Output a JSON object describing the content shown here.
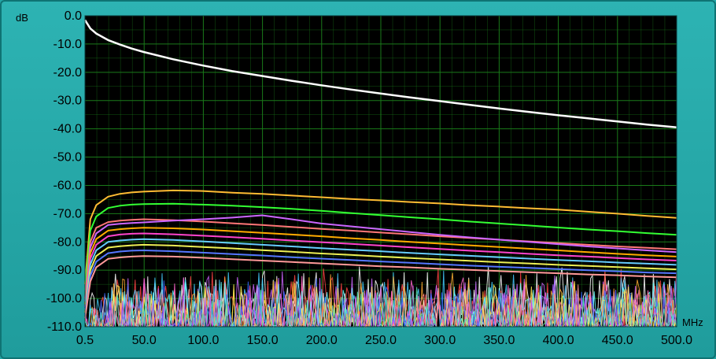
{
  "chart_data": {
    "type": "line",
    "title": "",
    "xlabel": "",
    "ylabel": "",
    "y_unit": "dB",
    "x_unit": "MHz",
    "xlim": [
      0.5,
      500.0
    ],
    "ylim": [
      -110.0,
      0.0
    ],
    "x_ticks": [
      "0.5",
      "50.0",
      "100.0",
      "150.0",
      "200.0",
      "250.0",
      "300.0",
      "350.0",
      "400.0",
      "450.0",
      "500.0"
    ],
    "y_ticks": [
      "0.0",
      "-10.0",
      "-20.0",
      "-30.0",
      "-40.0",
      "-50.0",
      "-60.0",
      "-70.0",
      "-80.0",
      "-90.0",
      "-100.0",
      "-110.0"
    ],
    "grid": true,
    "legend": "none",
    "background_color": "#000000",
    "grid_color": "#1a7a1a",
    "x": [
      0.5,
      5,
      10,
      20,
      30,
      40,
      50,
      75,
      100,
      125,
      150,
      175,
      200,
      225,
      250,
      275,
      300,
      325,
      350,
      375,
      400,
      425,
      450,
      475,
      500
    ],
    "series": [
      {
        "color": "#ffffff",
        "values": [
          -1.5,
          -4.5,
          -6.3,
          -8.6,
          -10.2,
          -11.6,
          -12.8,
          -15.4,
          -17.6,
          -19.6,
          -21.3,
          -23.0,
          -24.6,
          -26.1,
          -27.5,
          -28.9,
          -30.2,
          -31.5,
          -32.8,
          -34.0,
          -35.2,
          -36.3,
          -37.4,
          -38.5,
          -39.5
        ]
      },
      {
        "color": "#ffbb33",
        "values": [
          -95,
          -72,
          -67,
          -64,
          -63,
          -62.5,
          -62.2,
          -61.8,
          -62.0,
          -62.6,
          -63.0,
          -63.6,
          -64.2,
          -64.8,
          -65.3,
          -65.9,
          -66.4,
          -67.0,
          -67.5,
          -68.1,
          -68.6,
          -69.3,
          -70.0,
          -70.8,
          -71.5
        ]
      },
      {
        "color": "#33ff33",
        "values": [
          -97,
          -76,
          -71,
          -68,
          -67.2,
          -66.8,
          -66.6,
          -66.5,
          -66.8,
          -67.2,
          -67.7,
          -68.3,
          -69.0,
          -69.8,
          -70.5,
          -71.3,
          -72.0,
          -72.8,
          -73.5,
          -74.2,
          -74.9,
          -75.6,
          -76.2,
          -76.9,
          -77.5
        ]
      },
      {
        "color": "#ff7777",
        "values": [
          -100,
          -80,
          -75,
          -73,
          -72.5,
          -72.2,
          -72.0,
          -72.3,
          -72.8,
          -73.4,
          -74.0,
          -74.7,
          -75.4,
          -76.0,
          -76.7,
          -77.3,
          -78.0,
          -78.6,
          -79.2,
          -79.8,
          -80.4,
          -81.0,
          -81.6,
          -82.1,
          -82.6
        ]
      },
      {
        "color": "#cc66ff",
        "values": [
          -101,
          -82,
          -77,
          -74,
          -73.6,
          -73.3,
          -73.1,
          -72.5,
          -72.0,
          -71.4,
          -70.6,
          -72.0,
          -73.5,
          -74.5,
          -75.5,
          -76.5,
          -77.5,
          -78.4,
          -79.2,
          -80.0,
          -80.8,
          -81.6,
          -82.3,
          -83.0,
          -83.6
        ]
      },
      {
        "color": "#ffaa00",
        "values": [
          -102,
          -84,
          -79,
          -76,
          -75.5,
          -75.2,
          -75.0,
          -75.2,
          -75.6,
          -76.2,
          -76.8,
          -77.4,
          -78.0,
          -78.7,
          -79.3,
          -80.0,
          -80.6,
          -81.2,
          -81.8,
          -82.4,
          -83.0,
          -83.6,
          -84.2,
          -84.7,
          -85.2
        ]
      },
      {
        "color": "#ff44cc",
        "values": [
          -103,
          -86,
          -81,
          -78,
          -77.4,
          -77.1,
          -77.0,
          -77.3,
          -77.8,
          -78.3,
          -78.9,
          -79.5,
          -80.1,
          -80.7,
          -81.3,
          -81.9,
          -82.5,
          -83.1,
          -83.6,
          -84.2,
          -84.7,
          -85.2,
          -85.7,
          -86.2,
          -86.6
        ]
      },
      {
        "color": "#66ccff",
        "values": [
          -104,
          -88,
          -83,
          -80,
          -79.5,
          -79.2,
          -79.0,
          -79.3,
          -79.8,
          -80.4,
          -81.0,
          -81.6,
          -82.2,
          -82.8,
          -83.3,
          -83.9,
          -84.4,
          -84.9,
          -85.4,
          -85.9,
          -86.4,
          -86.8,
          -87.3,
          -87.7,
          -88.1
        ]
      },
      {
        "color": "#eeee55",
        "values": [
          -105,
          -90,
          -85,
          -82,
          -81.5,
          -81.2,
          -81.0,
          -81.3,
          -81.8,
          -82.3,
          -82.9,
          -83.5,
          -84.1,
          -84.6,
          -85.2,
          -85.7,
          -86.2,
          -86.7,
          -87.2,
          -87.6,
          -88.1,
          -88.5,
          -88.9,
          -89.3,
          -89.7
        ]
      },
      {
        "color": "#5577ff",
        "values": [
          -106,
          -92,
          -87,
          -84,
          -83.4,
          -83.1,
          -83.0,
          -83.3,
          -83.8,
          -84.3,
          -84.8,
          -85.4,
          -85.9,
          -86.4,
          -86.9,
          -87.4,
          -87.9,
          -88.4,
          -88.8,
          -89.2,
          -89.6,
          -90.0,
          -90.4,
          -90.8,
          -91.1
        ]
      },
      {
        "color": "#ff9999",
        "values": [
          -107,
          -94,
          -89,
          -86,
          -85.5,
          -85.2,
          -85.0,
          -85.2,
          -85.6,
          -86.1,
          -86.6,
          -87.1,
          -87.6,
          -88.1,
          -88.6,
          -89.0,
          -89.5,
          -89.9,
          -90.3,
          -90.7,
          -91.1,
          -91.5,
          -91.8,
          -92.2,
          -92.5
        ]
      }
    ],
    "noise_floor": {
      "colors": [
        "#ffffff",
        "#ff4444",
        "#44ccff",
        "#cc66ff",
        "#ffaa33",
        "#ff66cc",
        "#66ffff",
        "#3366ff",
        "#ffee55",
        "#ff8888",
        "#aa55ff",
        "#55ddaa"
      ],
      "band_dB": [
        -110,
        -85
      ]
    }
  }
}
